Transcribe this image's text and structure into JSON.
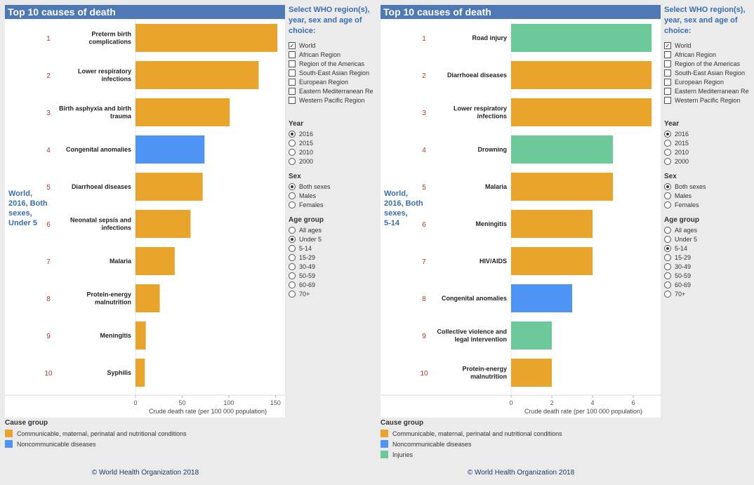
{
  "colors": {
    "communicable": "#e8a42b",
    "noncommunicable": "#4e94f5",
    "injuries": "#6cc99a",
    "rank": "#c0392b"
  },
  "filter_title": "Select WHO region(s), year, sex and age of choice:",
  "chart_title": "Top 10 causes of death",
  "x_axis_label": "Crude death rate (per 100 000 population)",
  "legend_title": "Cause group",
  "copyright": "© World Health Organization 2018",
  "panels": [
    {
      "side_label_lines": [
        "World,",
        "2016, Both",
        "sexes,",
        "Under 5"
      ],
      "regions": [
        {
          "label": "World",
          "checked": true
        },
        {
          "label": "African Region",
          "checked": false
        },
        {
          "label": "Region of the Americas",
          "checked": false
        },
        {
          "label": "South-East Asian Region",
          "checked": false
        },
        {
          "label": "European Region",
          "checked": false
        },
        {
          "label": "Eastern Mediterranean Re..",
          "checked": false
        },
        {
          "label": "Western Pacific Region",
          "checked": false
        }
      ],
      "year": {
        "title": "Year",
        "options": [
          "2016",
          "2015",
          "2010",
          "2000"
        ],
        "selected": 0
      },
      "sex": {
        "title": "Sex",
        "options": [
          "Both sexes",
          "Males",
          "Females"
        ],
        "selected": 0
      },
      "age": {
        "title": "Age group",
        "options": [
          "All ages",
          "Under 5",
          "5-14",
          "15-29",
          "30-49",
          "50-59",
          "60-69",
          "70+"
        ],
        "selected": 1
      },
      "legend": [
        {
          "label": "Communicable, maternal, perinatal and nutritional conditions",
          "group": "communicable"
        },
        {
          "label": "Noncommunicable diseases",
          "group": "noncommunicable"
        }
      ]
    },
    {
      "side_label_lines": [
        "World,",
        "2016, Both",
        "sexes,",
        "5-14"
      ],
      "regions": [
        {
          "label": "World",
          "checked": true
        },
        {
          "label": "African Region",
          "checked": false
        },
        {
          "label": "Region of the Americas",
          "checked": false
        },
        {
          "label": "South-East Asian Region",
          "checked": false
        },
        {
          "label": "European Region",
          "checked": false
        },
        {
          "label": "Eastern Mediterranean Re..",
          "checked": false
        },
        {
          "label": "Western Pacific Region",
          "checked": false
        }
      ],
      "year": {
        "title": "Year",
        "options": [
          "2016",
          "2015",
          "2010",
          "2000"
        ],
        "selected": 0
      },
      "sex": {
        "title": "Sex",
        "options": [
          "Both sexes",
          "Males",
          "Females"
        ],
        "selected": 0
      },
      "age": {
        "title": "Age group",
        "options": [
          "All ages",
          "Under 5",
          "5-14",
          "15-29",
          "30-49",
          "50-59",
          "60-69",
          "70+"
        ],
        "selected": 2
      },
      "legend": [
        {
          "label": "Communicable, maternal, perinatal and nutritional conditions",
          "group": "communicable"
        },
        {
          "label": "Noncommunicable diseases",
          "group": "noncommunicable"
        },
        {
          "label": "Injuries",
          "group": "injuries"
        }
      ]
    }
  ],
  "chart_data": [
    {
      "type": "bar",
      "orientation": "horizontal",
      "title": "Top 10 causes of death",
      "xlabel": "Crude death rate (per 100 000 population)",
      "xlim": [
        0,
        155
      ],
      "xticks": [
        0,
        50,
        100,
        150
      ],
      "ranks": [
        "1",
        "2",
        "3",
        "4",
        "5",
        "6",
        "7",
        "8",
        "9",
        "10"
      ],
      "categories": [
        [
          "Preterm birth",
          "complications"
        ],
        [
          "Lower respiratory",
          "infections"
        ],
        [
          "Birth asphyxia and birth",
          "trauma"
        ],
        [
          "Congenital anomalies"
        ],
        [
          "Diarrhoeal diseases"
        ],
        [
          "Neonatal sepsis and",
          "infections"
        ],
        [
          "Malaria"
        ],
        [
          "Protein-energy",
          "malnutrition"
        ],
        [
          "Meningitis"
        ],
        [
          "Syphilis"
        ]
      ],
      "values": [
        152,
        132,
        101,
        74,
        72,
        59,
        42,
        26,
        11,
        10
      ],
      "groups": [
        "communicable",
        "communicable",
        "communicable",
        "noncommunicable",
        "communicable",
        "communicable",
        "communicable",
        "communicable",
        "communicable",
        "communicable"
      ]
    },
    {
      "type": "bar",
      "orientation": "horizontal",
      "title": "Top 10 causes of death",
      "xlabel": "Crude death rate (per 100 000 population)",
      "xlim": [
        0,
        7.1
      ],
      "xticks": [
        0,
        2,
        4,
        6
      ],
      "ranks": [
        "1",
        "2",
        "3",
        "4",
        "5",
        "6",
        "7",
        "8",
        "9",
        "10"
      ],
      "categories": [
        [
          "Road injury"
        ],
        [
          "Diarrhoeal diseases"
        ],
        [
          "Lower respiratory",
          "infections"
        ],
        [
          "Drowning"
        ],
        [
          "Malaria"
        ],
        [
          "Meningitis"
        ],
        [
          "HIV/AIDS"
        ],
        [
          "Congenital anomalies"
        ],
        [
          "Collective violence and",
          "legal intervention"
        ],
        [
          "Protein-energy",
          "malnutrition"
        ]
      ],
      "values": [
        6.9,
        6.9,
        6.9,
        5.0,
        5.0,
        4.0,
        4.0,
        3.0,
        2.0,
        2.0
      ],
      "groups": [
        "injuries",
        "communicable",
        "communicable",
        "injuries",
        "communicable",
        "communicable",
        "communicable",
        "noncommunicable",
        "injuries",
        "communicable"
      ]
    }
  ]
}
